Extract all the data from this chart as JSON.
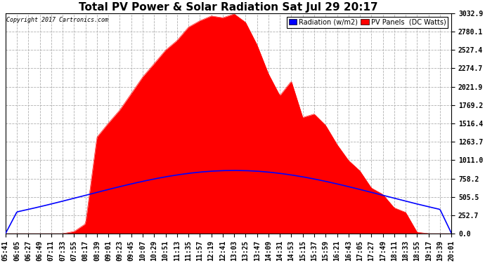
{
  "title": "Total PV Power & Solar Radiation Sat Jul 29 20:17",
  "copyright": "Copyright 2017 Cartronics.com",
  "legend_radiation": "Radiation (w/m2)",
  "legend_pv": "PV Panels  (DC Watts)",
  "ymax": 3032.9,
  "yticks": [
    0.0,
    252.7,
    505.5,
    758.2,
    1011.0,
    1263.7,
    1516.4,
    1769.2,
    2021.9,
    2274.7,
    2527.4,
    2780.1,
    3032.9
  ],
  "background_color": "#ffffff",
  "plot_bg_color": "#ffffff",
  "grid_color": "#b0b0b0",
  "radiation_color": "#0000ff",
  "pv_color": "#ff0000",
  "pv_fill_color": "#ff0000",
  "title_fontsize": 11,
  "tick_fontsize": 7
}
